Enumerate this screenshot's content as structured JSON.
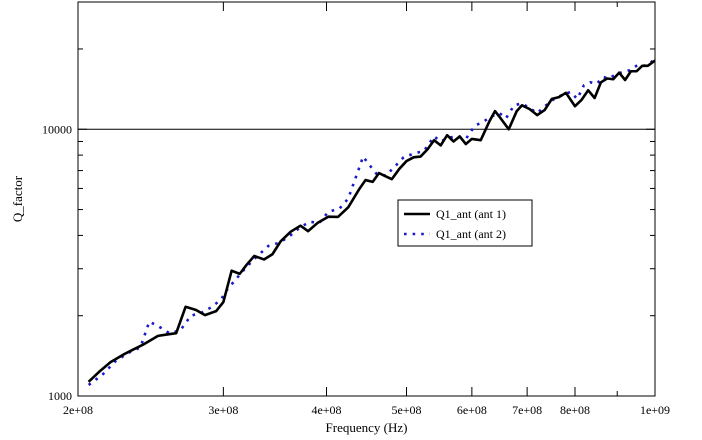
{
  "chart_data": {
    "type": "line",
    "xlabel": "Frequency (Hz)",
    "ylabel": "Q_factor",
    "xscale": "log",
    "yscale": "log",
    "xlim": [
      200000000,
      1000000000
    ],
    "ylim": [
      1000,
      30000
    ],
    "grid": "horizontal line at 10000",
    "legend_position": "center-right",
    "x_ticks": [
      {
        "value": 200000000,
        "label": "2e+08"
      },
      {
        "value": 300000000,
        "label": "3e+08"
      },
      {
        "value": 400000000,
        "label": "4e+08"
      },
      {
        "value": 500000000,
        "label": "5e+08"
      },
      {
        "value": 600000000,
        "label": "6e+08"
      },
      {
        "value": 700000000,
        "label": "7e+08"
      },
      {
        "value": 800000000,
        "label": "8e+08"
      },
      {
        "value": 1000000000,
        "label": "1e+09"
      }
    ],
    "y_ticks": [
      {
        "value": 1000,
        "label": "1000"
      },
      {
        "value": 10000,
        "label": "10000"
      }
    ],
    "y_minor_ticks": [
      2000,
      3000,
      4000,
      5000,
      6000,
      7000,
      8000,
      9000,
      20000,
      30000
    ],
    "x_minor_ticks": [
      900000000
    ],
    "series": [
      {
        "name": "Q1_ant (ant 1)",
        "style": "solid",
        "color": "#000000",
        "points": [
          [
            206000000,
            1130
          ],
          [
            212000000,
            1230
          ],
          [
            219000000,
            1340
          ],
          [
            227000000,
            1430
          ],
          [
            232000000,
            1480
          ],
          [
            240000000,
            1560
          ],
          [
            250000000,
            1680
          ],
          [
            256000000,
            1700
          ],
          [
            263000000,
            1720
          ],
          [
            270000000,
            2160
          ],
          [
            278000000,
            2100
          ],
          [
            285000000,
            2010
          ],
          [
            294000000,
            2080
          ],
          [
            300000000,
            2250
          ],
          [
            307000000,
            2950
          ],
          [
            314000000,
            2870
          ],
          [
            320000000,
            3100
          ],
          [
            327000000,
            3350
          ],
          [
            336000000,
            3250
          ],
          [
            344000000,
            3400
          ],
          [
            352000000,
            3800
          ],
          [
            362000000,
            4130
          ],
          [
            372000000,
            4350
          ],
          [
            380000000,
            4150
          ],
          [
            390000000,
            4450
          ],
          [
            402000000,
            4700
          ],
          [
            413000000,
            4690
          ],
          [
            425000000,
            5100
          ],
          [
            438000000,
            5950
          ],
          [
            446000000,
            6450
          ],
          [
            455000000,
            6350
          ],
          [
            463000000,
            6850
          ],
          [
            470000000,
            6700
          ],
          [
            480000000,
            6500
          ],
          [
            490000000,
            7100
          ],
          [
            500000000,
            7600
          ],
          [
            510000000,
            7850
          ],
          [
            520000000,
            7900
          ],
          [
            530000000,
            8400
          ],
          [
            540000000,
            9100
          ],
          [
            550000000,
            8700
          ],
          [
            560000000,
            9500
          ],
          [
            570000000,
            9000
          ],
          [
            580000000,
            9400
          ],
          [
            590000000,
            8800
          ],
          [
            600000000,
            9200
          ],
          [
            615000000,
            9100
          ],
          [
            630000000,
            10700
          ],
          [
            640000000,
            11700
          ],
          [
            650000000,
            11000
          ],
          [
            665000000,
            10000
          ],
          [
            680000000,
            11700
          ],
          [
            690000000,
            12300
          ],
          [
            705000000,
            11900
          ],
          [
            720000000,
            11300
          ],
          [
            735000000,
            11800
          ],
          [
            750000000,
            13000
          ],
          [
            765000000,
            13200
          ],
          [
            780000000,
            13700
          ],
          [
            800000000,
            12200
          ],
          [
            815000000,
            12900
          ],
          [
            830000000,
            14000
          ],
          [
            845000000,
            13100
          ],
          [
            860000000,
            15000
          ],
          [
            875000000,
            15500
          ],
          [
            890000000,
            15400
          ],
          [
            905000000,
            16300
          ],
          [
            920000000,
            15300
          ],
          [
            935000000,
            16500
          ],
          [
            950000000,
            16500
          ],
          [
            965000000,
            17300
          ],
          [
            980000000,
            17300
          ],
          [
            1000000000,
            18100
          ]
        ]
      },
      {
        "name": "Q1_ant (ant 2)",
        "style": "dotted",
        "color": "#1a1acc",
        "points": [
          [
            206000000,
            1100
          ],
          [
            214000000,
            1200
          ],
          [
            222000000,
            1350
          ],
          [
            230000000,
            1450
          ],
          [
            238000000,
            1520
          ],
          [
            244000000,
            1900
          ],
          [
            250000000,
            1830
          ],
          [
            258000000,
            1720
          ],
          [
            266000000,
            1760
          ],
          [
            274000000,
            2000
          ],
          [
            282000000,
            2050
          ],
          [
            290000000,
            2150
          ],
          [
            298000000,
            2300
          ],
          [
            303000000,
            2500
          ],
          [
            311000000,
            2750
          ],
          [
            320000000,
            3050
          ],
          [
            330000000,
            3350
          ],
          [
            340000000,
            3650
          ],
          [
            350000000,
            3750
          ],
          [
            360000000,
            3950
          ],
          [
            372000000,
            4300
          ],
          [
            382000000,
            4500
          ],
          [
            392000000,
            4450
          ],
          [
            402000000,
            4900
          ],
          [
            415000000,
            5050
          ],
          [
            425000000,
            5500
          ],
          [
            437000000,
            7000
          ],
          [
            443000000,
            7900
          ],
          [
            450000000,
            7400
          ],
          [
            460000000,
            6800
          ],
          [
            472000000,
            6700
          ],
          [
            485000000,
            7300
          ],
          [
            496000000,
            7850
          ],
          [
            510000000,
            8100
          ],
          [
            525000000,
            8300
          ],
          [
            540000000,
            9400
          ],
          [
            550000000,
            9000
          ],
          [
            562000000,
            9300
          ],
          [
            575000000,
            9400
          ],
          [
            590000000,
            9200
          ],
          [
            605000000,
            10300
          ],
          [
            620000000,
            10700
          ],
          [
            635000000,
            11200
          ],
          [
            648000000,
            11500
          ],
          [
            660000000,
            11000
          ],
          [
            675000000,
            12300
          ],
          [
            690000000,
            12500
          ],
          [
            705000000,
            12000
          ],
          [
            720000000,
            11500
          ],
          [
            738000000,
            12300
          ],
          [
            755000000,
            13000
          ],
          [
            770000000,
            13400
          ],
          [
            790000000,
            13800
          ],
          [
            805000000,
            13000
          ],
          [
            820000000,
            14600
          ],
          [
            835000000,
            15000
          ],
          [
            850000000,
            14800
          ],
          [
            865000000,
            15700
          ],
          [
            880000000,
            15500
          ],
          [
            900000000,
            16200
          ],
          [
            918000000,
            16400
          ],
          [
            935000000,
            16700
          ],
          [
            952000000,
            17400
          ],
          [
            970000000,
            17300
          ],
          [
            985000000,
            17600
          ],
          [
            1000000000,
            18400
          ]
        ]
      }
    ]
  }
}
